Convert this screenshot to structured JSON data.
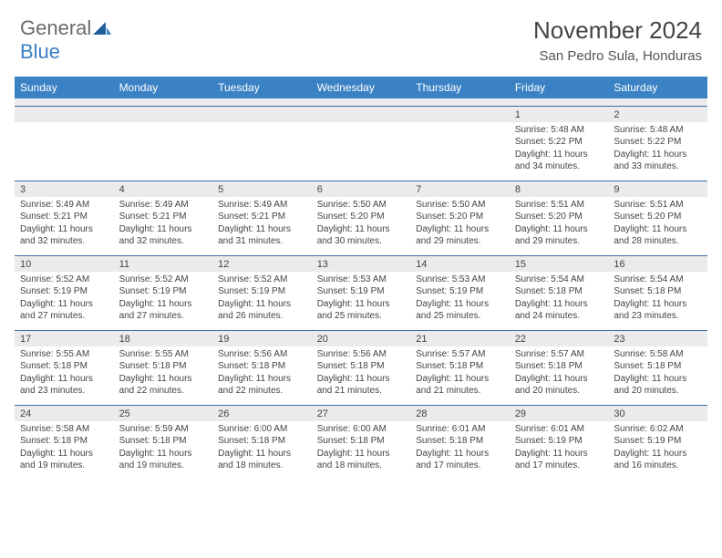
{
  "logo": {
    "text1": "General",
    "text2": "Blue"
  },
  "title": "November 2024",
  "location": "San Pedro Sula, Honduras",
  "colors": {
    "header_bg": "#3b82c4",
    "header_text": "#ffffff",
    "daynum_bg": "#ebebeb",
    "border": "#3b6fa0",
    "body_text": "#444444",
    "logo_blue": "#3b7fc4",
    "logo_gray": "#6a6a6a"
  },
  "font": {
    "family": "Arial",
    "title_size": 26,
    "location_size": 15,
    "dayhead_size": 12,
    "daynum_size": 11,
    "cell_size": 10
  },
  "day_headers": [
    "Sunday",
    "Monday",
    "Tuesday",
    "Wednesday",
    "Thursday",
    "Friday",
    "Saturday"
  ],
  "weeks": [
    [
      null,
      null,
      null,
      null,
      null,
      {
        "n": "1",
        "sr": "5:48 AM",
        "ss": "5:22 PM",
        "dl": "11 hours and 34 minutes."
      },
      {
        "n": "2",
        "sr": "5:48 AM",
        "ss": "5:22 PM",
        "dl": "11 hours and 33 minutes."
      }
    ],
    [
      {
        "n": "3",
        "sr": "5:49 AM",
        "ss": "5:21 PM",
        "dl": "11 hours and 32 minutes."
      },
      {
        "n": "4",
        "sr": "5:49 AM",
        "ss": "5:21 PM",
        "dl": "11 hours and 32 minutes."
      },
      {
        "n": "5",
        "sr": "5:49 AM",
        "ss": "5:21 PM",
        "dl": "11 hours and 31 minutes."
      },
      {
        "n": "6",
        "sr": "5:50 AM",
        "ss": "5:20 PM",
        "dl": "11 hours and 30 minutes."
      },
      {
        "n": "7",
        "sr": "5:50 AM",
        "ss": "5:20 PM",
        "dl": "11 hours and 29 minutes."
      },
      {
        "n": "8",
        "sr": "5:51 AM",
        "ss": "5:20 PM",
        "dl": "11 hours and 29 minutes."
      },
      {
        "n": "9",
        "sr": "5:51 AM",
        "ss": "5:20 PM",
        "dl": "11 hours and 28 minutes."
      }
    ],
    [
      {
        "n": "10",
        "sr": "5:52 AM",
        "ss": "5:19 PM",
        "dl": "11 hours and 27 minutes."
      },
      {
        "n": "11",
        "sr": "5:52 AM",
        "ss": "5:19 PM",
        "dl": "11 hours and 27 minutes."
      },
      {
        "n": "12",
        "sr": "5:52 AM",
        "ss": "5:19 PM",
        "dl": "11 hours and 26 minutes."
      },
      {
        "n": "13",
        "sr": "5:53 AM",
        "ss": "5:19 PM",
        "dl": "11 hours and 25 minutes."
      },
      {
        "n": "14",
        "sr": "5:53 AM",
        "ss": "5:19 PM",
        "dl": "11 hours and 25 minutes."
      },
      {
        "n": "15",
        "sr": "5:54 AM",
        "ss": "5:18 PM",
        "dl": "11 hours and 24 minutes."
      },
      {
        "n": "16",
        "sr": "5:54 AM",
        "ss": "5:18 PM",
        "dl": "11 hours and 23 minutes."
      }
    ],
    [
      {
        "n": "17",
        "sr": "5:55 AM",
        "ss": "5:18 PM",
        "dl": "11 hours and 23 minutes."
      },
      {
        "n": "18",
        "sr": "5:55 AM",
        "ss": "5:18 PM",
        "dl": "11 hours and 22 minutes."
      },
      {
        "n": "19",
        "sr": "5:56 AM",
        "ss": "5:18 PM",
        "dl": "11 hours and 22 minutes."
      },
      {
        "n": "20",
        "sr": "5:56 AM",
        "ss": "5:18 PM",
        "dl": "11 hours and 21 minutes."
      },
      {
        "n": "21",
        "sr": "5:57 AM",
        "ss": "5:18 PM",
        "dl": "11 hours and 21 minutes."
      },
      {
        "n": "22",
        "sr": "5:57 AM",
        "ss": "5:18 PM",
        "dl": "11 hours and 20 minutes."
      },
      {
        "n": "23",
        "sr": "5:58 AM",
        "ss": "5:18 PM",
        "dl": "11 hours and 20 minutes."
      }
    ],
    [
      {
        "n": "24",
        "sr": "5:58 AM",
        "ss": "5:18 PM",
        "dl": "11 hours and 19 minutes."
      },
      {
        "n": "25",
        "sr": "5:59 AM",
        "ss": "5:18 PM",
        "dl": "11 hours and 19 minutes."
      },
      {
        "n": "26",
        "sr": "6:00 AM",
        "ss": "5:18 PM",
        "dl": "11 hours and 18 minutes."
      },
      {
        "n": "27",
        "sr": "6:00 AM",
        "ss": "5:18 PM",
        "dl": "11 hours and 18 minutes."
      },
      {
        "n": "28",
        "sr": "6:01 AM",
        "ss": "5:18 PM",
        "dl": "11 hours and 17 minutes."
      },
      {
        "n": "29",
        "sr": "6:01 AM",
        "ss": "5:19 PM",
        "dl": "11 hours and 17 minutes."
      },
      {
        "n": "30",
        "sr": "6:02 AM",
        "ss": "5:19 PM",
        "dl": "11 hours and 16 minutes."
      }
    ]
  ],
  "labels": {
    "sunrise": "Sunrise:",
    "sunset": "Sunset:",
    "daylight": "Daylight:"
  }
}
